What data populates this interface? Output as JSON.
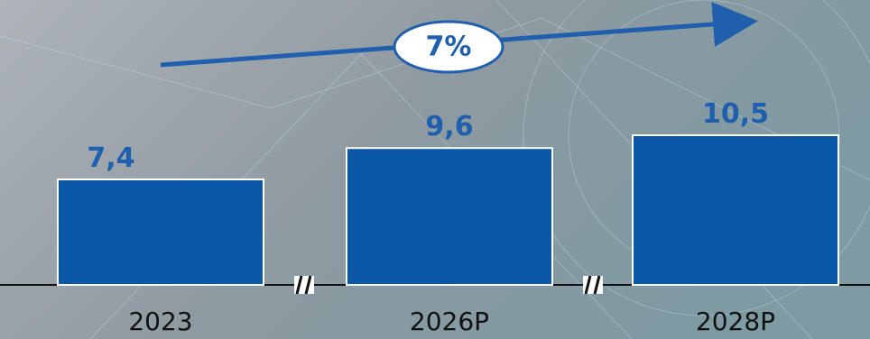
{
  "chart_data": {
    "type": "bar",
    "categories": [
      "2023",
      "2026P",
      "2028P"
    ],
    "values": [
      7.4,
      9.6,
      10.5
    ],
    "value_labels": [
      "7,4",
      "9,6",
      "10,5"
    ],
    "color": "#0b58a8",
    "annotation": "7%"
  }
}
